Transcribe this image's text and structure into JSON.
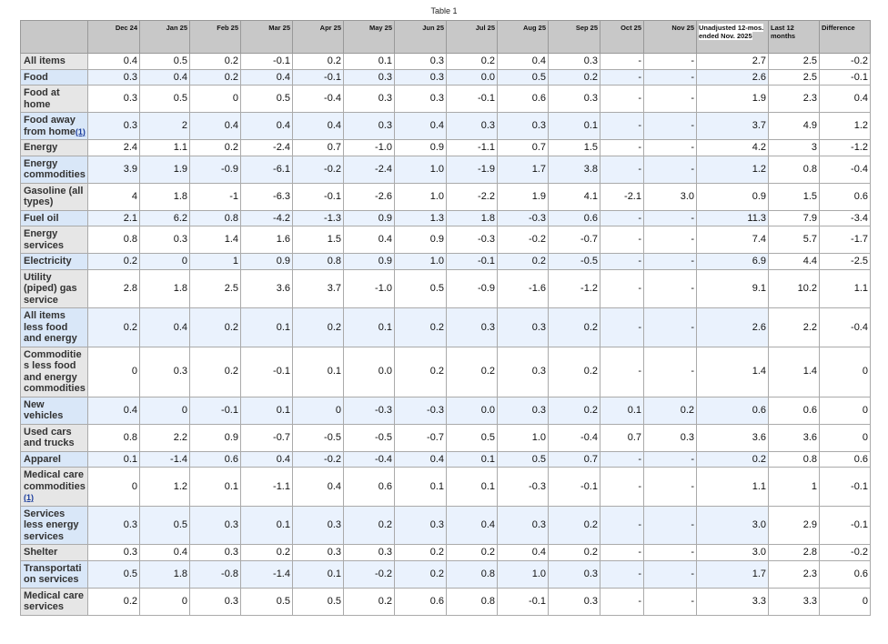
{
  "caption": "Table 1",
  "columns": [
    "",
    "Dec 24",
    "Jan 25",
    "Feb 25",
    "Mar 25",
    "Apr 25",
    "May 25",
    "Jun 25",
    "Jul 25",
    "Aug 25",
    "Sep 25",
    "Oct 25",
    "Nov 25",
    "Unadjusted 12-mos. ended Nov. 2025",
    "Last 12 months",
    "Difference"
  ],
  "rows": [
    {
      "label": "All items",
      "values": [
        "0.4",
        "0.5",
        "0.2",
        "-0.1",
        "0.2",
        "0.1",
        "0.3",
        "0.2",
        "0.4",
        "0.3",
        "-",
        "-",
        "2.7",
        "2.5",
        "-0.2"
      ]
    },
    {
      "label": "Food",
      "values": [
        "0.3",
        "0.4",
        "0.2",
        "0.4",
        "-0.1",
        "0.3",
        "0.3",
        "0.0",
        "0.5",
        "0.2",
        "-",
        "-",
        "2.6",
        "2.5",
        "-0.1"
      ]
    },
    {
      "label": "Food at home",
      "values": [
        "0.3",
        "0.5",
        "0",
        "0.5",
        "-0.4",
        "0.3",
        "0.3",
        "-0.1",
        "0.6",
        "0.3",
        "-",
        "-",
        "1.9",
        "2.3",
        "0.4"
      ]
    },
    {
      "label": "Food away from home",
      "footnote": "(1)",
      "values": [
        "0.3",
        "2",
        "0.4",
        "0.4",
        "0.4",
        "0.3",
        "0.4",
        "0.3",
        "0.3",
        "0.1",
        "-",
        "-",
        "3.7",
        "4.9",
        "1.2"
      ]
    },
    {
      "label": "Energy",
      "values": [
        "2.4",
        "1.1",
        "0.2",
        "-2.4",
        "0.7",
        "-1.0",
        "0.9",
        "-1.1",
        "0.7",
        "1.5",
        "-",
        "-",
        "4.2",
        "3",
        "-1.2"
      ]
    },
    {
      "label": "Energy commodities",
      "values": [
        "3.9",
        "1.9",
        "-0.9",
        "-6.1",
        "-0.2",
        "-2.4",
        "1.0",
        "-1.9",
        "1.7",
        "3.8",
        "-",
        "-",
        "1.2",
        "0.8",
        "-0.4"
      ]
    },
    {
      "label": "Gasoline (all types)",
      "values": [
        "4",
        "1.8",
        "-1",
        "-6.3",
        "-0.1",
        "-2.6",
        "1.0",
        "-2.2",
        "1.9",
        "4.1",
        "-2.1",
        "3.0",
        "0.9",
        "1.5",
        "0.6"
      ]
    },
    {
      "label": "Fuel oil",
      "values": [
        "2.1",
        "6.2",
        "0.8",
        "-4.2",
        "-1.3",
        "0.9",
        "1.3",
        "1.8",
        "-0.3",
        "0.6",
        "-",
        "-",
        "11.3",
        "7.9",
        "-3.4"
      ]
    },
    {
      "label": "Energy services",
      "values": [
        "0.8",
        "0.3",
        "1.4",
        "1.6",
        "1.5",
        "0.4",
        "0.9",
        "-0.3",
        "-0.2",
        "-0.7",
        "-",
        "-",
        "7.4",
        "5.7",
        "-1.7"
      ]
    },
    {
      "label": "Electricity",
      "values": [
        "0.2",
        "0",
        "1",
        "0.9",
        "0.8",
        "0.9",
        "1.0",
        "-0.1",
        "0.2",
        "-0.5",
        "-",
        "-",
        "6.9",
        "4.4",
        "-2.5"
      ]
    },
    {
      "label": "Utility (piped) gas service",
      "values": [
        "2.8",
        "1.8",
        "2.5",
        "3.6",
        "3.7",
        "-1.0",
        "0.5",
        "-0.9",
        "-1.6",
        "-1.2",
        "-",
        "-",
        "9.1",
        "10.2",
        "1.1"
      ]
    },
    {
      "label": "All items less food and energy",
      "values": [
        "0.2",
        "0.4",
        "0.2",
        "0.1",
        "0.2",
        "0.1",
        "0.2",
        "0.3",
        "0.3",
        "0.2",
        "-",
        "-",
        "2.6",
        "2.2",
        "-0.4"
      ]
    },
    {
      "label": "Commodities less food and energy commodities",
      "values": [
        "0",
        "0.3",
        "0.2",
        "-0.1",
        "0.1",
        "0.0",
        "0.2",
        "0.2",
        "0.3",
        "0.2",
        "-",
        "-",
        "1.4",
        "1.4",
        "0"
      ]
    },
    {
      "label": "New vehicles",
      "values": [
        "0.4",
        "0",
        "-0.1",
        "0.1",
        "0",
        "-0.3",
        "-0.3",
        "0.0",
        "0.3",
        "0.2",
        "0.1",
        "0.2",
        "0.6",
        "0.6",
        "0"
      ]
    },
    {
      "label": "Used cars and trucks",
      "values": [
        "0.8",
        "2.2",
        "0.9",
        "-0.7",
        "-0.5",
        "-0.5",
        "-0.7",
        "0.5",
        "1.0",
        "-0.4",
        "0.7",
        "0.3",
        "3.6",
        "3.6",
        "0"
      ]
    },
    {
      "label": "Apparel",
      "values": [
        "0.1",
        "-1.4",
        "0.6",
        "0.4",
        "-0.2",
        "-0.4",
        "0.4",
        "0.1",
        "0.5",
        "0.7",
        "-",
        "-",
        "0.2",
        "0.8",
        "0.6"
      ]
    },
    {
      "label": "Medical care commodities",
      "footnote": "(1)",
      "values": [
        "0",
        "1.2",
        "0.1",
        "-1.1",
        "0.4",
        "0.6",
        "0.1",
        "0.1",
        "-0.3",
        "-0.1",
        "-",
        "-",
        "1.1",
        "1",
        "-0.1"
      ]
    },
    {
      "label": "Services less energy services",
      "values": [
        "0.3",
        "0.5",
        "0.3",
        "0.1",
        "0.3",
        "0.2",
        "0.3",
        "0.4",
        "0.3",
        "0.2",
        "-",
        "-",
        "3.0",
        "2.9",
        "-0.1"
      ]
    },
    {
      "label": "Shelter",
      "values": [
        "0.3",
        "0.4",
        "0.3",
        "0.2",
        "0.3",
        "0.3",
        "0.2",
        "0.2",
        "0.4",
        "0.2",
        "-",
        "-",
        "3.0",
        "2.8",
        "-0.2"
      ]
    },
    {
      "label": "Transportation services",
      "values": [
        "0.5",
        "1.8",
        "-0.8",
        "-1.4",
        "0.1",
        "-0.2",
        "0.2",
        "0.8",
        "1.0",
        "0.3",
        "-",
        "-",
        "1.7",
        "2.3",
        "0.6"
      ]
    },
    {
      "label": "Medical care services",
      "values": [
        "0.2",
        "0",
        "0.3",
        "0.5",
        "0.5",
        "0.2",
        "0.6",
        "0.8",
        "-0.1",
        "0.3",
        "-",
        "-",
        "3.3",
        "3.3",
        "0"
      ]
    }
  ]
}
